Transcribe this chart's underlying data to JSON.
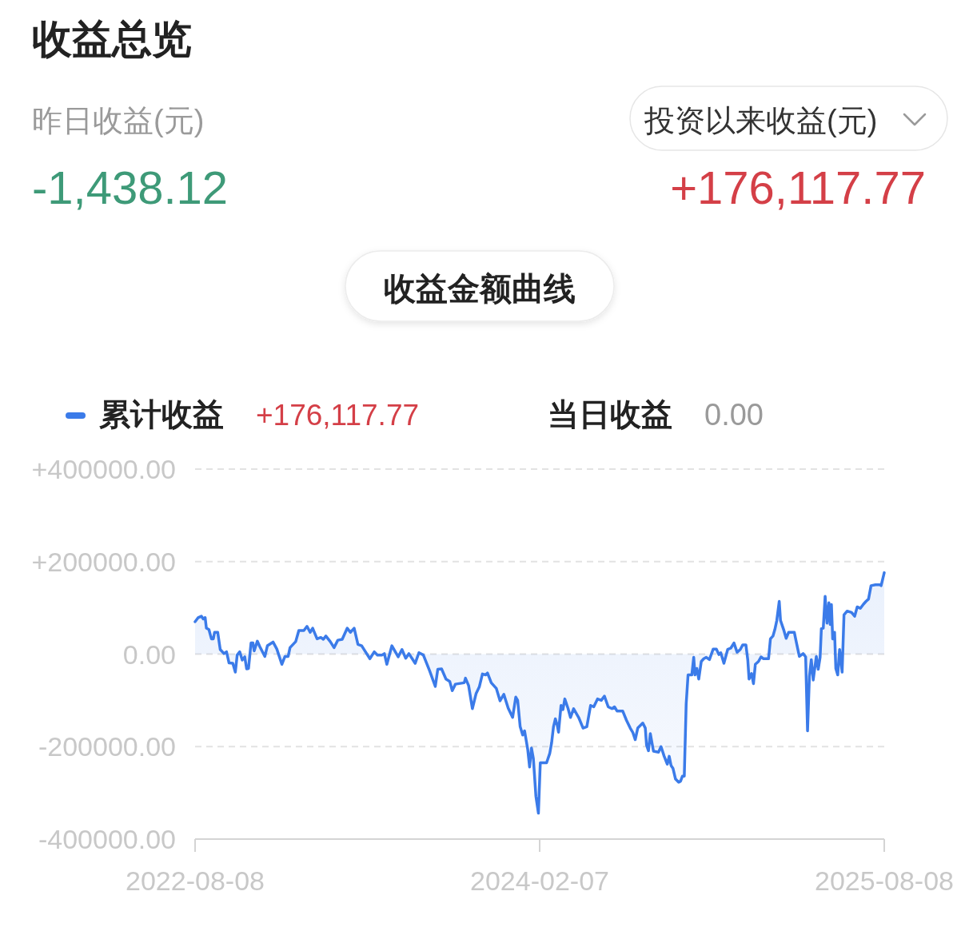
{
  "chart_data": {
    "type": "area",
    "title": "收益总览",
    "subtitle": "收益金额曲线",
    "annotations": [
      "昨日收益(元)",
      "-1,438.12",
      "投资以来收益(元)",
      "+176,117.77",
      "+176,117.77",
      "当日收益",
      "0.00"
    ],
    "xlim": [
      "2022-08-08",
      "2025-08-08"
    ],
    "xticks": [
      "2022-08-08",
      "2024-02-07",
      "2025-08-08"
    ],
    "ylim": [
      -400000,
      400000
    ],
    "yticks": [
      {
        "value": -400000,
        "label": "-400000.00"
      },
      {
        "value": -200000,
        "label": "-200000.00"
      },
      {
        "value": 0,
        "label": "0.00"
      },
      {
        "value": 200000,
        "label": "+200000.00"
      },
      {
        "value": 400000,
        "label": "+400000.00"
      }
    ],
    "grid": "y",
    "legend": "top left",
    "x": [
      "2022-08-08",
      "2022-08-13",
      "2022-08-18",
      "2022-08-21",
      "2022-08-24",
      "2022-08-26",
      "2022-08-30",
      "2022-09-03",
      "2022-09-06",
      "2022-09-08",
      "2022-09-13",
      "2022-09-17",
      "2022-09-23",
      "2022-09-27",
      "2022-10-01",
      "2022-10-07",
      "2022-10-11",
      "2022-10-14",
      "2022-10-18",
      "2022-10-22",
      "2022-10-26",
      "2022-10-29",
      "2022-11-01",
      "2022-11-05",
      "2022-11-08",
      "2022-11-10",
      "2022-11-15",
      "2022-11-19",
      "2022-11-27",
      "2022-12-01",
      "2022-12-10",
      "2022-12-16",
      "2022-12-24",
      "2022-12-29",
      "2023-01-03",
      "2023-01-06",
      "2023-01-15",
      "2023-01-20",
      "2023-01-28",
      "2023-02-02",
      "2023-02-07",
      "2023-02-11",
      "2023-02-18",
      "2023-02-24",
      "2023-02-28",
      "2023-03-04",
      "2023-03-11",
      "2023-03-17",
      "2023-03-23",
      "2023-03-30",
      "2023-04-07",
      "2023-04-12",
      "2023-04-18",
      "2023-04-24",
      "2023-04-30",
      "2023-05-05",
      "2023-05-13",
      "2023-05-20",
      "2023-05-25",
      "2023-06-01",
      "2023-06-05",
      "2023-06-09",
      "2023-06-17",
      "2023-06-27",
      "2023-07-03",
      "2023-07-09",
      "2023-07-14",
      "2023-07-24",
      "2023-07-30",
      "2023-08-06",
      "2023-08-16",
      "2023-08-25",
      "2023-08-29",
      "2023-09-04",
      "2023-09-11",
      "2023-09-17",
      "2023-09-21",
      "2023-09-26",
      "2023-10-10",
      "2023-10-12",
      "2023-10-17",
      "2023-10-23",
      "2023-10-29",
      "2023-11-03",
      "2023-11-08",
      "2023-11-13",
      "2023-11-16",
      "2023-11-22",
      "2023-11-30",
      "2023-12-06",
      "2023-12-12",
      "2023-12-19",
      "2023-12-26",
      "2023-12-31",
      "2024-01-03",
      "2024-01-07",
      "2024-01-11",
      "2024-01-14",
      "2024-01-19",
      "2024-01-22",
      "2024-01-25",
      "2024-01-28",
      "2024-02-01",
      "2024-02-05",
      "2024-02-08",
      "2024-02-18",
      "2024-02-23",
      "2024-02-26",
      "2024-02-29",
      "2024-03-03",
      "2024-03-06",
      "2024-03-08",
      "2024-03-12",
      "2024-03-15",
      "2024-03-18",
      "2024-03-23",
      "2024-03-27",
      "2024-04-01",
      "2024-04-09",
      "2024-04-16",
      "2024-04-22",
      "2024-04-28",
      "2024-05-03",
      "2024-05-09",
      "2024-05-15",
      "2024-05-20",
      "2024-05-26",
      "2024-06-01",
      "2024-06-05",
      "2024-06-09",
      "2024-06-18",
      "2024-06-24",
      "2024-06-30",
      "2024-07-04",
      "2024-07-08",
      "2024-07-12",
      "2024-07-20",
      "2024-07-24",
      "2024-07-26",
      "2024-07-29",
      "2024-08-01",
      "2024-08-06",
      "2024-08-14",
      "2024-08-18",
      "2024-08-23",
      "2024-08-28",
      "2024-08-31",
      "2024-09-03",
      "2024-09-06",
      "2024-09-10",
      "2024-09-15",
      "2024-09-18",
      "2024-09-21",
      "2024-09-24",
      "2024-09-27",
      "2024-09-30",
      "2024-10-06",
      "2024-10-09",
      "2024-10-11",
      "2024-10-14",
      "2024-10-17",
      "2024-10-21",
      "2024-10-25",
      "2024-10-29",
      "2024-11-03",
      "2024-11-09",
      "2024-11-14",
      "2024-11-18",
      "2024-11-21",
      "2024-11-26",
      "2024-12-02",
      "2024-12-07",
      "2024-12-12",
      "2024-12-17",
      "2024-12-22",
      "2024-12-26",
      "2024-12-31",
      "2025-01-03",
      "2025-01-05",
      "2025-01-09",
      "2025-01-12",
      "2025-01-15",
      "2025-01-20",
      "2025-01-24",
      "2025-01-28",
      "2025-02-05",
      "2025-02-08",
      "2025-02-12",
      "2025-02-15",
      "2025-02-18",
      "2025-02-22",
      "2025-02-24",
      "2025-03-01",
      "2025-03-05",
      "2025-03-09",
      "2025-03-18",
      "2025-03-21",
      "2025-03-26",
      "2025-04-01",
      "2025-04-05",
      "2025-04-08",
      "2025-04-11",
      "2025-04-14",
      "2025-04-17",
      "2025-04-22",
      "2025-04-25",
      "2025-04-28",
      "2025-04-30",
      "2025-05-03",
      "2025-05-06",
      "2025-05-09",
      "2025-05-12",
      "2025-05-14",
      "2025-05-16",
      "2025-05-18",
      "2025-05-21",
      "2025-05-23",
      "2025-05-26",
      "2025-05-29",
      "2025-06-02",
      "2025-06-05",
      "2025-06-10",
      "2025-06-17",
      "2025-06-22",
      "2025-06-26",
      "2025-07-01",
      "2025-07-06",
      "2025-07-10",
      "2025-07-14",
      "2025-07-18",
      "2025-07-25",
      "2025-08-01",
      "2025-08-03",
      "2025-08-08"
    ],
    "series": [
      {
        "name": "累计收益",
        "color": "#3b7be9",
        "values": [
          70000,
          79000,
          82000,
          76000,
          79000,
          56000,
          53000,
          33000,
          33000,
          47000,
          47000,
          10000,
          1000,
          5000,
          -19000,
          -20000,
          -39000,
          -2000,
          5000,
          -13000,
          -6000,
          -32000,
          -31000,
          24000,
          24000,
          7000,
          28000,
          16000,
          -5000,
          18000,
          26000,
          11000,
          -22000,
          -5000,
          -5000,
          14000,
          27000,
          51000,
          51000,
          60000,
          47000,
          56000,
          33000,
          36000,
          32000,
          39000,
          27000,
          14000,
          30000,
          32000,
          56000,
          47000,
          56000,
          21000,
          18000,
          7000,
          -10000,
          5000,
          -2000,
          -2000,
          1000,
          -22000,
          18000,
          -6000,
          10000,
          -9000,
          1000,
          -20000,
          3000,
          -2000,
          -36000,
          -70000,
          -33000,
          -32000,
          -54000,
          -59000,
          -79000,
          -65000,
          -62000,
          -52000,
          -68000,
          -118000,
          -85000,
          -71000,
          -43000,
          -45000,
          -41000,
          -62000,
          -74000,
          -101000,
          -87000,
          -117000,
          -137000,
          -93000,
          -100000,
          -157000,
          -175000,
          -166000,
          -206000,
          -244000,
          -203000,
          -226000,
          -307000,
          -344000,
          -235000,
          -235000,
          -215000,
          -192000,
          -157000,
          -140000,
          -154000,
          -169000,
          -111000,
          -120000,
          -97000,
          -117000,
          -137000,
          -118000,
          -137000,
          -160000,
          -157000,
          -111000,
          -114000,
          -97000,
          -100000,
          -91000,
          -114000,
          -118000,
          -114000,
          -123000,
          -123000,
          -143000,
          -160000,
          -169000,
          -185000,
          -160000,
          -149000,
          -160000,
          -197000,
          -209000,
          -172000,
          -210000,
          -212000,
          -200000,
          -221000,
          -238000,
          -221000,
          -241000,
          -247000,
          -270000,
          -277000,
          -275000,
          -264000,
          -264000,
          -108000,
          -45000,
          -45000,
          -7000,
          -45000,
          -31000,
          -54000,
          -16000,
          -10000,
          -7000,
          -12000,
          11000,
          11000,
          -1000,
          3000,
          -20000,
          10000,
          13000,
          24000,
          4000,
          10000,
          20000,
          20000,
          -13000,
          -54000,
          -42000,
          -64000,
          -22000,
          -16000,
          -6000,
          -10000,
          -10000,
          33000,
          39000,
          53000,
          72000,
          114000,
          73000,
          53000,
          34000,
          47000,
          47000,
          27000,
          -5000,
          1000,
          -6000,
          -166000,
          -48000,
          -12000,
          -56000,
          -5000,
          -33000,
          -7000,
          55000,
          56000,
          125000,
          67000,
          111000,
          64000,
          107000,
          33000,
          47000,
          -31000,
          -45000,
          10000,
          -39000,
          85000,
          93000,
          90000,
          82000,
          102000,
          99000,
          108000,
          114000,
          119000,
          148000,
          150000,
          150000,
          148000,
          176000
        ]
      }
    ]
  }
}
